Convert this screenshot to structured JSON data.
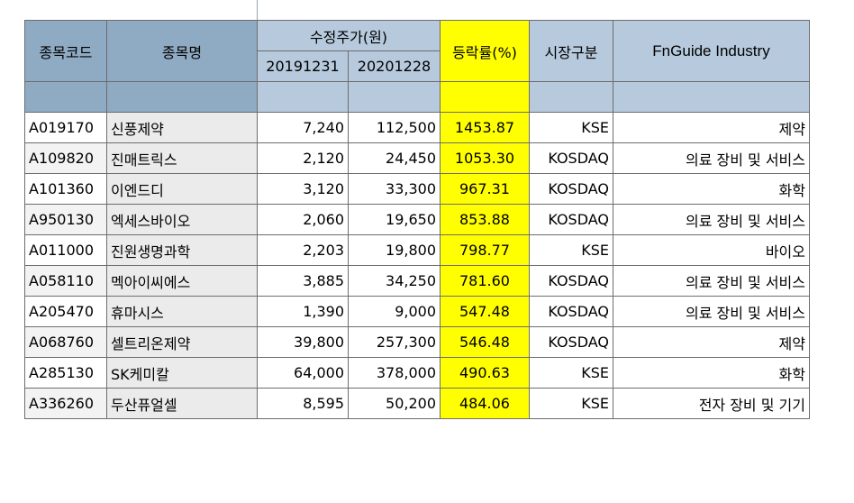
{
  "headers": {
    "code": "종목코드",
    "name": "종목명",
    "adj_price": "수정주가(원)",
    "date1": "20191231",
    "date2": "20201228",
    "change": "등락률(%)",
    "market": "시장구분",
    "industry": "FnGuide Industry"
  },
  "rows": [
    {
      "code": "A019170",
      "name": "신풍제약",
      "p1": "7,240",
      "p2": "112,500",
      "chg": "1453.87",
      "market": "KSE",
      "industry": "제약"
    },
    {
      "code": "A109820",
      "name": "진매트릭스",
      "p1": "2,120",
      "p2": "24,450",
      "chg": "1053.30",
      "market": "KOSDAQ",
      "industry": "의료 장비 및 서비스"
    },
    {
      "code": "A101360",
      "name": "이엔드디",
      "p1": "3,120",
      "p2": "33,300",
      "chg": "967.31",
      "market": "KOSDAQ",
      "industry": "화학"
    },
    {
      "code": "A950130",
      "name": "엑세스바이오",
      "p1": "2,060",
      "p2": "19,650",
      "chg": "853.88",
      "market": "KOSDAQ",
      "industry": "의료 장비 및 서비스"
    },
    {
      "code": "A011000",
      "name": "진원생명과학",
      "p1": "2,203",
      "p2": "19,800",
      "chg": "798.77",
      "market": "KSE",
      "industry": "바이오"
    },
    {
      "code": "A058110",
      "name": "멕아이씨에스",
      "p1": "3,885",
      "p2": "34,250",
      "chg": "781.60",
      "market": "KOSDAQ",
      "industry": "의료 장비 및 서비스"
    },
    {
      "code": "A205470",
      "name": "휴마시스",
      "p1": "1,390",
      "p2": "9,000",
      "chg": "547.48",
      "market": "KOSDAQ",
      "industry": "의료 장비 및 서비스"
    },
    {
      "code": "A068760",
      "name": "셀트리온제약",
      "p1": "39,800",
      "p2": "257,300",
      "chg": "546.48",
      "market": "KOSDAQ",
      "industry": "제약"
    },
    {
      "code": "A285130",
      "name": "SK케미칼",
      "p1": "64,000",
      "p2": "378,000",
      "chg": "490.63",
      "market": "KSE",
      "industry": "화학"
    },
    {
      "code": "A336260",
      "name": "두산퓨얼셀",
      "p1": "8,595",
      "p2": "50,200",
      "chg": "484.06",
      "market": "KSE",
      "industry": "전자 장비 및 기기"
    }
  ]
}
